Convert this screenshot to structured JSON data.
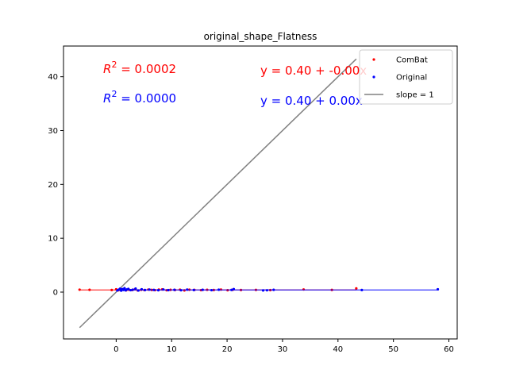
{
  "chart_data": {
    "type": "scatter",
    "title": "original_shape_Flatness",
    "xlim": [
      -9.5,
      61.5
    ],
    "ylim": [
      -8.7,
      45.7
    ],
    "x_ticks": [
      0,
      10,
      20,
      30,
      40,
      50,
      60
    ],
    "y_ticks": [
      0,
      10,
      20,
      30,
      40
    ],
    "grid": false,
    "legend_position": "top-right",
    "series": [
      {
        "name": "ComBat",
        "color": "#ff0000",
        "fit": {
          "intercept": 0.4,
          "slope": 0.0
        },
        "points": [
          [
            -6.6,
            0.45
          ],
          [
            -4.8,
            0.42
          ],
          [
            -0.8,
            0.38
          ],
          [
            0.0,
            0.52
          ],
          [
            0.4,
            0.35
          ],
          [
            0.8,
            0.41
          ],
          [
            1.2,
            0.48
          ],
          [
            1.8,
            0.33
          ],
          [
            2.3,
            0.44
          ],
          [
            2.9,
            0.39
          ],
          [
            3.4,
            0.51
          ],
          [
            3.9,
            0.3
          ],
          [
            4.5,
            0.43
          ],
          [
            5.1,
            0.37
          ],
          [
            5.8,
            0.47
          ],
          [
            6.4,
            0.4
          ],
          [
            7.0,
            0.36
          ],
          [
            7.7,
            0.46
          ],
          [
            8.3,
            0.5
          ],
          [
            9.1,
            0.34
          ],
          [
            9.8,
            0.42
          ],
          [
            10.6,
            0.38
          ],
          [
            11.5,
            0.45
          ],
          [
            12.3,
            0.31
          ],
          [
            13.2,
            0.44
          ],
          [
            14.1,
            0.4
          ],
          [
            15.3,
            0.36
          ],
          [
            16.4,
            0.43
          ],
          [
            17.6,
            0.39
          ],
          [
            18.9,
            0.47
          ],
          [
            20.1,
            0.35
          ],
          [
            21.0,
            0.42
          ],
          [
            22.5,
            0.38
          ],
          [
            25.2,
            0.41
          ],
          [
            27.8,
            0.37
          ],
          [
            33.8,
            0.49
          ],
          [
            38.9,
            0.4
          ],
          [
            43.3,
            0.68
          ]
        ]
      },
      {
        "name": "Original",
        "color": "#0000ff",
        "fit": {
          "intercept": 0.4,
          "slope": 0.0
        },
        "points": [
          [
            0.2,
            0.31
          ],
          [
            0.5,
            0.46
          ],
          [
            0.7,
            0.62
          ],
          [
            0.9,
            0.28
          ],
          [
            1.1,
            0.55
          ],
          [
            1.3,
            0.4
          ],
          [
            1.5,
            0.72
          ],
          [
            1.7,
            0.33
          ],
          [
            1.9,
            0.48
          ],
          [
            2.2,
            0.59
          ],
          [
            2.6,
            0.36
          ],
          [
            3.0,
            0.44
          ],
          [
            3.5,
            0.65
          ],
          [
            4.0,
            0.3
          ],
          [
            4.6,
            0.52
          ],
          [
            5.2,
            0.38
          ],
          [
            6.0,
            0.47
          ],
          [
            6.8,
            0.41
          ],
          [
            7.6,
            0.35
          ],
          [
            8.5,
            0.49
          ],
          [
            9.4,
            0.37
          ],
          [
            10.5,
            0.43
          ],
          [
            11.7,
            0.34
          ],
          [
            12.8,
            0.46
          ],
          [
            14.0,
            0.39
          ],
          [
            15.6,
            0.42
          ],
          [
            17.2,
            0.36
          ],
          [
            18.5,
            0.44
          ],
          [
            20.8,
            0.4
          ],
          [
            21.2,
            0.55
          ],
          [
            26.5,
            0.31
          ],
          [
            27.2,
            0.34
          ],
          [
            28.4,
            0.42
          ],
          [
            44.3,
            0.38
          ],
          [
            58.0,
            0.52
          ]
        ]
      },
      {
        "name": "slope = 1",
        "color": "#808080",
        "line": {
          "x": [
            -6.6,
            43.3
          ],
          "y": [
            -6.6,
            43.3
          ]
        }
      }
    ],
    "annotations": [
      {
        "id": "r2_combat",
        "prefix": "R",
        "sup": "2",
        "text": " = 0.0002",
        "color": "#ff0000"
      },
      {
        "id": "r2_original",
        "prefix": "R",
        "sup": "2",
        "text": " = 0.0000",
        "color": "#0000ff"
      },
      {
        "id": "eq_combat",
        "text": "y = 0.40 + -0.00x",
        "color": "#ff0000"
      },
      {
        "id": "eq_original",
        "text": "y = 0.40 + 0.00x",
        "color": "#0000ff"
      }
    ]
  }
}
